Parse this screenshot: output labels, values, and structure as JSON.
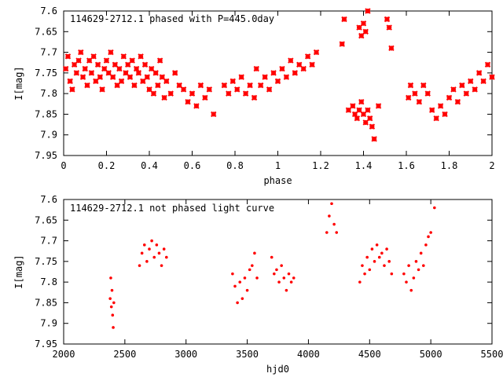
{
  "chart_data": [
    {
      "type": "scatter",
      "title": "114629-2712.1 phased with P=445.0day",
      "xlabel": "phase",
      "ylabel": "I[mag]",
      "xlim": [
        0,
        2
      ],
      "ylim": [
        7.95,
        7.6
      ],
      "y_inverted": true,
      "grid": false,
      "marker": "star",
      "color": "#ff0000",
      "xticks": [
        0,
        0.2,
        0.4,
        0.6,
        0.8,
        1,
        1.2,
        1.4,
        1.6,
        1.8,
        2
      ],
      "yticks": [
        7.6,
        7.65,
        7.7,
        7.75,
        7.8,
        7.85,
        7.9,
        7.95
      ],
      "xtick_labels": [
        "0",
        "0.2",
        "0.4",
        "0.6",
        "0.8",
        "1",
        "1.2",
        "1.4",
        "1.6",
        "1.8",
        "2"
      ],
      "ytick_labels": [
        "7.6",
        "7.65",
        "7.7",
        "7.75",
        "7.8",
        "7.85",
        "7.9",
        "7.95"
      ],
      "points": [
        [
          0.01,
          7.74
        ],
        [
          0.02,
          7.71
        ],
        [
          0.03,
          7.77
        ],
        [
          0.04,
          7.79
        ],
        [
          0.05,
          7.73
        ],
        [
          0.06,
          7.75
        ],
        [
          0.07,
          7.72
        ],
        [
          0.08,
          7.7
        ],
        [
          0.09,
          7.76
        ],
        [
          0.1,
          7.74
        ],
        [
          0.11,
          7.78
        ],
        [
          0.12,
          7.72
        ],
        [
          0.13,
          7.75
        ],
        [
          0.14,
          7.71
        ],
        [
          0.15,
          7.77
        ],
        [
          0.16,
          7.73
        ],
        [
          0.17,
          7.76
        ],
        [
          0.18,
          7.79
        ],
        [
          0.19,
          7.74
        ],
        [
          0.2,
          7.72
        ],
        [
          0.21,
          7.75
        ],
        [
          0.22,
          7.7
        ],
        [
          0.23,
          7.76
        ],
        [
          0.24,
          7.73
        ],
        [
          0.25,
          7.78
        ],
        [
          0.26,
          7.74
        ],
        [
          0.27,
          7.77
        ],
        [
          0.28,
          7.71
        ],
        [
          0.29,
          7.75
        ],
        [
          0.3,
          7.73
        ],
        [
          0.31,
          7.76
        ],
        [
          0.32,
          7.72
        ],
        [
          0.33,
          7.78
        ],
        [
          0.34,
          7.74
        ],
        [
          0.35,
          7.75
        ],
        [
          0.36,
          7.71
        ],
        [
          0.37,
          7.77
        ],
        [
          0.38,
          7.73
        ],
        [
          0.39,
          7.76
        ],
        [
          0.4,
          7.79
        ],
        [
          0.41,
          7.74
        ],
        [
          0.42,
          7.8
        ],
        [
          0.43,
          7.75
        ],
        [
          0.44,
          7.78
        ],
        [
          0.45,
          7.72
        ],
        [
          0.46,
          7.76
        ],
        [
          0.47,
          7.81
        ],
        [
          0.48,
          7.77
        ],
        [
          0.5,
          7.8
        ],
        [
          0.52,
          7.75
        ],
        [
          0.54,
          7.78
        ],
        [
          0.56,
          7.79
        ],
        [
          0.58,
          7.82
        ],
        [
          0.6,
          7.8
        ],
        [
          0.62,
          7.83
        ],
        [
          0.64,
          7.78
        ],
        [
          0.66,
          7.81
        ],
        [
          0.68,
          7.79
        ],
        [
          0.7,
          7.85
        ],
        [
          0.75,
          7.78
        ],
        [
          0.77,
          7.8
        ],
        [
          0.79,
          7.77
        ],
        [
          0.81,
          7.79
        ],
        [
          0.83,
          7.76
        ],
        [
          0.85,
          7.8
        ],
        [
          0.87,
          7.78
        ],
        [
          0.89,
          7.81
        ],
        [
          0.9,
          7.74
        ],
        [
          0.92,
          7.78
        ],
        [
          0.94,
          7.76
        ],
        [
          0.96,
          7.79
        ],
        [
          0.98,
          7.75
        ],
        [
          1.0,
          7.77
        ],
        [
          1.02,
          7.74
        ],
        [
          1.04,
          7.76
        ],
        [
          1.06,
          7.72
        ],
        [
          1.08,
          7.75
        ],
        [
          1.1,
          7.73
        ],
        [
          1.12,
          7.74
        ],
        [
          1.14,
          7.71
        ],
        [
          1.16,
          7.73
        ],
        [
          1.18,
          7.7
        ],
        [
          1.3,
          7.68
        ],
        [
          1.31,
          7.62
        ],
        [
          1.33,
          7.84
        ],
        [
          1.35,
          7.83
        ],
        [
          1.36,
          7.85
        ],
        [
          1.37,
          7.86
        ],
        [
          1.38,
          7.84
        ],
        [
          1.38,
          7.64
        ],
        [
          1.39,
          7.82
        ],
        [
          1.39,
          7.66
        ],
        [
          1.4,
          7.85
        ],
        [
          1.4,
          7.63
        ],
        [
          1.41,
          7.87
        ],
        [
          1.41,
          7.65
        ],
        [
          1.42,
          7.84
        ],
        [
          1.42,
          7.6
        ],
        [
          1.43,
          7.86
        ],
        [
          1.44,
          7.88
        ],
        [
          1.45,
          7.91
        ],
        [
          1.47,
          7.83
        ],
        [
          1.51,
          7.62
        ],
        [
          1.52,
          7.64
        ],
        [
          1.53,
          7.69
        ],
        [
          1.61,
          7.81
        ],
        [
          1.62,
          7.78
        ],
        [
          1.64,
          7.8
        ],
        [
          1.66,
          7.82
        ],
        [
          1.68,
          7.78
        ],
        [
          1.7,
          7.8
        ],
        [
          1.72,
          7.84
        ],
        [
          1.74,
          7.86
        ],
        [
          1.76,
          7.83
        ],
        [
          1.78,
          7.85
        ],
        [
          1.8,
          7.81
        ],
        [
          1.82,
          7.79
        ],
        [
          1.84,
          7.82
        ],
        [
          1.86,
          7.78
        ],
        [
          1.88,
          7.8
        ],
        [
          1.9,
          7.77
        ],
        [
          1.92,
          7.79
        ],
        [
          1.94,
          7.75
        ],
        [
          1.96,
          7.77
        ],
        [
          1.98,
          7.73
        ],
        [
          2.0,
          7.76
        ]
      ]
    },
    {
      "type": "scatter",
      "title": "114629-2712.1 not phased light curve",
      "xlabel": "hjd0",
      "ylabel": "I[mag]",
      "xlim": [
        2000,
        5500
      ],
      "ylim": [
        7.95,
        7.6
      ],
      "y_inverted": true,
      "grid": false,
      "marker": "dot",
      "color": "#ff0000",
      "xticks": [
        2000,
        2500,
        3000,
        3500,
        4000,
        4500,
        5000,
        5500
      ],
      "yticks": [
        7.6,
        7.65,
        7.7,
        7.75,
        7.8,
        7.85,
        7.9,
        7.95
      ],
      "xtick_labels": [
        "2000",
        "2500",
        "3000",
        "3500",
        "4000",
        "4500",
        "5000",
        "5500"
      ],
      "ytick_labels": [
        "7.6",
        "7.65",
        "7.7",
        "7.75",
        "7.8",
        "7.85",
        "7.9",
        "7.95"
      ],
      "points": [
        [
          2380,
          7.84
        ],
        [
          2385,
          7.79
        ],
        [
          2390,
          7.86
        ],
        [
          2395,
          7.82
        ],
        [
          2400,
          7.88
        ],
        [
          2405,
          7.91
        ],
        [
          2410,
          7.85
        ],
        [
          2620,
          7.76
        ],
        [
          2640,
          7.73
        ],
        [
          2660,
          7.71
        ],
        [
          2680,
          7.75
        ],
        [
          2700,
          7.72
        ],
        [
          2720,
          7.7
        ],
        [
          2740,
          7.74
        ],
        [
          2760,
          7.71
        ],
        [
          2780,
          7.73
        ],
        [
          2800,
          7.76
        ],
        [
          2820,
          7.72
        ],
        [
          2840,
          7.74
        ],
        [
          3380,
          7.78
        ],
        [
          3400,
          7.81
        ],
        [
          3420,
          7.85
        ],
        [
          3440,
          7.8
        ],
        [
          3460,
          7.84
        ],
        [
          3480,
          7.79
        ],
        [
          3500,
          7.82
        ],
        [
          3520,
          7.77
        ],
        [
          3540,
          7.76
        ],
        [
          3560,
          7.73
        ],
        [
          3580,
          7.79
        ],
        [
          3700,
          7.74
        ],
        [
          3720,
          7.78
        ],
        [
          3740,
          7.77
        ],
        [
          3760,
          7.8
        ],
        [
          3780,
          7.76
        ],
        [
          3800,
          7.79
        ],
        [
          3820,
          7.82
        ],
        [
          3840,
          7.78
        ],
        [
          3860,
          7.8
        ],
        [
          3880,
          7.79
        ],
        [
          4150,
          7.68
        ],
        [
          4170,
          7.64
        ],
        [
          4190,
          7.61
        ],
        [
          4210,
          7.66
        ],
        [
          4230,
          7.68
        ],
        [
          4420,
          7.8
        ],
        [
          4440,
          7.76
        ],
        [
          4460,
          7.78
        ],
        [
          4480,
          7.74
        ],
        [
          4500,
          7.77
        ],
        [
          4520,
          7.72
        ],
        [
          4540,
          7.75
        ],
        [
          4560,
          7.71
        ],
        [
          4580,
          7.74
        ],
        [
          4600,
          7.73
        ],
        [
          4620,
          7.76
        ],
        [
          4640,
          7.72
        ],
        [
          4660,
          7.75
        ],
        [
          4680,
          7.78
        ],
        [
          4780,
          7.78
        ],
        [
          4800,
          7.8
        ],
        [
          4820,
          7.76
        ],
        [
          4840,
          7.82
        ],
        [
          4860,
          7.79
        ],
        [
          4880,
          7.75
        ],
        [
          4900,
          7.77
        ],
        [
          4920,
          7.73
        ],
        [
          4940,
          7.76
        ],
        [
          4960,
          7.71
        ],
        [
          4980,
          7.69
        ],
        [
          5000,
          7.68
        ],
        [
          5030,
          7.62
        ]
      ]
    }
  ]
}
